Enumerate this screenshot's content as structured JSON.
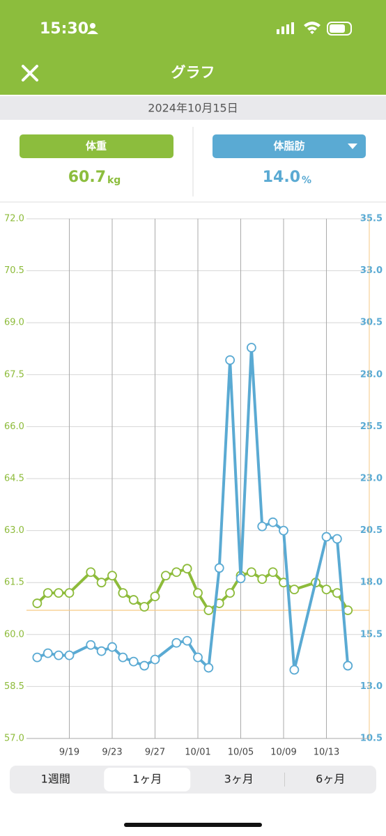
{
  "status_bar": {
    "time": "15:30"
  },
  "header": {
    "title": "グラフ"
  },
  "date": "2024年10月15日",
  "summary": [
    {
      "value": "60.7",
      "unit": "kg"
    },
    {
      "value": "14.0",
      "unit": "%"
    }
  ],
  "chart_data": {
    "type": "line",
    "xlim": [
      "9/15",
      "10/17"
    ],
    "xticks": [
      "9/19",
      "9/23",
      "9/27",
      "10/01",
      "10/05",
      "10/09",
      "10/13"
    ],
    "ylim": [
      57,
      72
    ],
    "yticks": [
      {
        "value": 57,
        "label": "57.0"
      },
      {
        "value": 58.5,
        "label": "58.5"
      },
      {
        "value": 60,
        "label": "60.0"
      },
      {
        "value": 61.5,
        "label": "61.5"
      },
      {
        "value": 63,
        "label": "63.0"
      },
      {
        "value": 64.5,
        "label": "64.5"
      },
      {
        "value": 66,
        "label": "66.0"
      },
      {
        "value": 67.5,
        "label": "67.5"
      },
      {
        "value": 69,
        "label": "69.0"
      },
      {
        "value": 70.5,
        "label": "70.5"
      },
      {
        "value": 72,
        "label": "72.0"
      }
    ],
    "y2lim": [
      10.5,
      35.5
    ],
    "y2ticks": [
      {
        "value": 10.5,
        "label": "10.5"
      },
      {
        "value": 13,
        "label": "13.0"
      },
      {
        "value": 15.5,
        "label": "15.5"
      },
      {
        "value": 18,
        "label": "18.0"
      },
      {
        "value": 20.5,
        "label": "20.5"
      },
      {
        "value": 23,
        "label": "23.0"
      },
      {
        "value": 25.5,
        "label": "25.5"
      },
      {
        "value": 28,
        "label": "28.0"
      },
      {
        "value": 30.5,
        "label": "30.5"
      },
      {
        "value": 33,
        "label": "33.0"
      },
      {
        "value": 35.5,
        "label": "35.5"
      }
    ],
    "reference_line": {
      "value": 60.7,
      "color": "#f6c985"
    },
    "series": [
      {
        "name": "体重",
        "color": "#8dbb3a",
        "x": [
          "9/16",
          "9/17",
          "9/18",
          "9/19",
          "9/21",
          "9/22",
          "9/23",
          "9/24",
          "9/25",
          "9/26",
          "9/27",
          "9/28",
          "9/29",
          "9/30",
          "10/01",
          "10/02",
          "10/03",
          "10/04",
          "10/05",
          "10/06",
          "10/07",
          "10/08",
          "10/09",
          "10/10",
          "10/12",
          "10/13",
          "10/14",
          "10/15"
        ],
        "values": [
          60.9,
          61.2,
          61.2,
          61.2,
          61.8,
          61.5,
          61.7,
          61.2,
          61.0,
          60.8,
          61.1,
          61.7,
          61.8,
          61.9,
          61.2,
          60.7,
          60.9,
          61.2,
          61.7,
          61.8,
          61.6,
          61.8,
          61.5,
          61.3,
          61.5,
          61.3,
          61.2,
          60.7
        ]
      },
      {
        "name": "体脂肪",
        "color": "#5aaad3",
        "axis": "y2",
        "x": [
          "9/16",
          "9/17",
          "9/18",
          "9/19",
          "9/21",
          "9/22",
          "9/23",
          "9/24",
          "9/25",
          "9/26",
          "9/27",
          "9/29",
          "9/30",
          "10/01",
          "10/02",
          "10/03",
          "10/04",
          "10/05",
          "10/06",
          "10/07",
          "10/08",
          "10/09",
          "10/10",
          "10/13",
          "10/14",
          "10/15"
        ],
        "values": [
          14.4,
          14.6,
          14.5,
          14.5,
          15.0,
          14.7,
          14.9,
          14.4,
          14.2,
          14.0,
          14.3,
          15.1,
          15.2,
          14.4,
          13.9,
          18.7,
          28.7,
          18.2,
          29.3,
          20.7,
          20.9,
          20.5,
          13.8,
          20.2,
          20.1,
          14.0
        ]
      }
    ]
  },
  "tabs": [
    "1週間",
    "1ヶ月",
    "3ヶ月",
    "6ヶ月"
  ],
  "selected_tab": 1
}
